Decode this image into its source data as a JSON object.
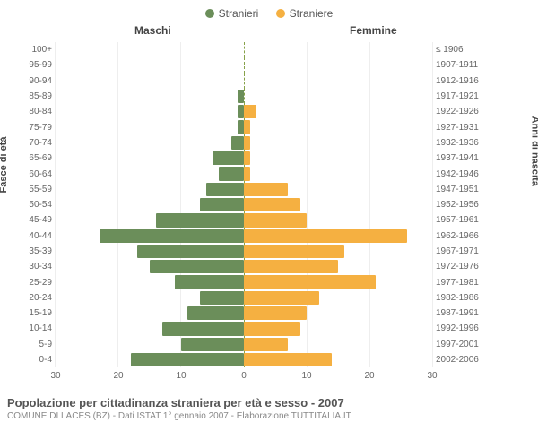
{
  "legend": {
    "male_label": "Stranieri",
    "female_label": "Straniere"
  },
  "header": {
    "male_col": "Maschi",
    "female_col": "Femmine"
  },
  "axis": {
    "left_title": "Fasce di età",
    "right_title": "Anni di nascita"
  },
  "colors": {
    "male": "#6b8e5a",
    "female": "#f5b041",
    "center_line": "#87a24a",
    "grid": "#eeeeee",
    "bg": "#ffffff"
  },
  "chart": {
    "type": "population-pyramid",
    "x_max": 30,
    "x_ticks_left": [
      30,
      20,
      10,
      0
    ],
    "x_ticks_right": [
      0,
      10,
      20,
      30
    ],
    "bar_gap": 1
  },
  "rows": [
    {
      "age": "100+",
      "birth": "≤ 1906",
      "m": 0,
      "f": 0
    },
    {
      "age": "95-99",
      "birth": "1907-1911",
      "m": 0,
      "f": 0
    },
    {
      "age": "90-94",
      "birth": "1912-1916",
      "m": 0,
      "f": 0
    },
    {
      "age": "85-89",
      "birth": "1917-1921",
      "m": 1,
      "f": 0
    },
    {
      "age": "80-84",
      "birth": "1922-1926",
      "m": 1,
      "f": 2
    },
    {
      "age": "75-79",
      "birth": "1927-1931",
      "m": 1,
      "f": 1
    },
    {
      "age": "70-74",
      "birth": "1932-1936",
      "m": 2,
      "f": 1
    },
    {
      "age": "65-69",
      "birth": "1937-1941",
      "m": 5,
      "f": 1
    },
    {
      "age": "60-64",
      "birth": "1942-1946",
      "m": 4,
      "f": 1
    },
    {
      "age": "55-59",
      "birth": "1947-1951",
      "m": 6,
      "f": 7
    },
    {
      "age": "50-54",
      "birth": "1952-1956",
      "m": 7,
      "f": 9
    },
    {
      "age": "45-49",
      "birth": "1957-1961",
      "m": 14,
      "f": 10
    },
    {
      "age": "40-44",
      "birth": "1962-1966",
      "m": 23,
      "f": 26
    },
    {
      "age": "35-39",
      "birth": "1967-1971",
      "m": 17,
      "f": 16
    },
    {
      "age": "30-34",
      "birth": "1972-1976",
      "m": 15,
      "f": 15
    },
    {
      "age": "25-29",
      "birth": "1977-1981",
      "m": 11,
      "f": 21
    },
    {
      "age": "20-24",
      "birth": "1982-1986",
      "m": 7,
      "f": 12
    },
    {
      "age": "15-19",
      "birth": "1987-1991",
      "m": 9,
      "f": 10
    },
    {
      "age": "10-14",
      "birth": "1992-1996",
      "m": 13,
      "f": 9
    },
    {
      "age": "5-9",
      "birth": "1997-2001",
      "m": 10,
      "f": 7
    },
    {
      "age": "0-4",
      "birth": "2002-2006",
      "m": 18,
      "f": 14
    }
  ],
  "footer": {
    "title": "Popolazione per cittadinanza straniera per età e sesso - 2007",
    "sub": "COMUNE DI LACES (BZ) - Dati ISTAT 1° gennaio 2007 - Elaborazione TUTTITALIA.IT"
  }
}
